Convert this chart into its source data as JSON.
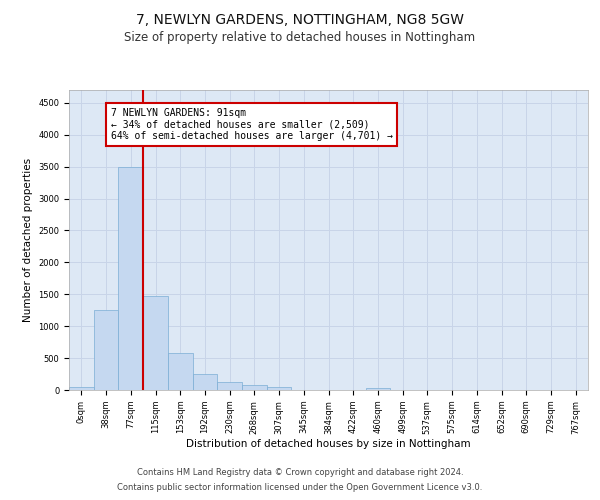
{
  "title": "7, NEWLYN GARDENS, NOTTINGHAM, NG8 5GW",
  "subtitle": "Size of property relative to detached houses in Nottingham",
  "xlabel": "Distribution of detached houses by size in Nottingham",
  "ylabel": "Number of detached properties",
  "bin_labels": [
    "0sqm",
    "38sqm",
    "77sqm",
    "115sqm",
    "153sqm",
    "192sqm",
    "230sqm",
    "268sqm",
    "307sqm",
    "345sqm",
    "384sqm",
    "422sqm",
    "460sqm",
    "499sqm",
    "537sqm",
    "575sqm",
    "614sqm",
    "652sqm",
    "690sqm",
    "729sqm",
    "767sqm"
  ],
  "bar_heights": [
    50,
    1250,
    3500,
    1480,
    580,
    250,
    130,
    80,
    40,
    5,
    0,
    0,
    30,
    0,
    0,
    0,
    0,
    0,
    0,
    0,
    0
  ],
  "bar_color": "#c5d8f0",
  "bar_edge_color": "#7aadd4",
  "grid_color": "#c8d4e8",
  "bg_color": "#dde8f5",
  "vline_color": "#cc0000",
  "annotation_text": "7 NEWLYN GARDENS: 91sqm\n← 34% of detached houses are smaller (2,509)\n64% of semi-detached houses are larger (4,701) →",
  "annotation_box_color": "#ffffff",
  "annotation_box_edge": "#cc0000",
  "ylim": [
    0,
    4700
  ],
  "yticks": [
    0,
    500,
    1000,
    1500,
    2000,
    2500,
    3000,
    3500,
    4000,
    4500
  ],
  "footer_line1": "Contains HM Land Registry data © Crown copyright and database right 2024.",
  "footer_line2": "Contains public sector information licensed under the Open Government Licence v3.0.",
  "title_fontsize": 10,
  "subtitle_fontsize": 8.5,
  "tick_fontsize": 6,
  "ylabel_fontsize": 7.5,
  "xlabel_fontsize": 7.5,
  "footer_fontsize": 6,
  "ann_fontsize": 7
}
